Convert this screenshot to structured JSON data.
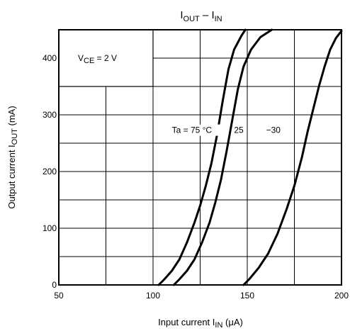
{
  "chart_data": {
    "type": "line",
    "title": {
      "main": "I",
      "s1": "OUT",
      "mid": " – I",
      "s2": "IN"
    },
    "xlabel": {
      "pre": "Input current   I",
      "sub": "IN",
      "post": "   (μA)"
    },
    "ylabel": {
      "pre": "Output current   I",
      "sub": "OUT",
      "post": "   (mA)"
    },
    "xlim": [
      50,
      200
    ],
    "ylim": [
      0,
      450
    ],
    "x_ticks": [
      50,
      100,
      150,
      200
    ],
    "y_ticks": [
      0,
      100,
      200,
      300,
      400
    ],
    "x_tick_labels": [
      "50",
      "100",
      "150",
      "200"
    ],
    "y_tick_labels": [
      "0",
      "100",
      "200",
      "300",
      "400"
    ],
    "x_minor_grid": [
      75,
      125,
      175
    ],
    "y_minor_grid": [
      50,
      150,
      250,
      350
    ],
    "grid": true,
    "condition": {
      "pre": "V",
      "sub": "CE",
      "post": " = 2 V"
    },
    "condition_box": {
      "x": [
        50,
        100
      ],
      "y": [
        350,
        450
      ]
    },
    "series": [
      {
        "name": "Ta = 75 °C",
        "points": [
          [
            103,
            0
          ],
          [
            106,
            10
          ],
          [
            110,
            25
          ],
          [
            114,
            45
          ],
          [
            118,
            75
          ],
          [
            122,
            110
          ],
          [
            125,
            140
          ],
          [
            128,
            175
          ],
          [
            131,
            215
          ],
          [
            134,
            265
          ],
          [
            137,
            325
          ],
          [
            140,
            380
          ],
          [
            143,
            415
          ],
          [
            147,
            440
          ],
          [
            149,
            450
          ]
        ]
      },
      {
        "name": "25",
        "points": [
          [
            111,
            0
          ],
          [
            114,
            10
          ],
          [
            118,
            25
          ],
          [
            122,
            45
          ],
          [
            126,
            75
          ],
          [
            130,
            110
          ],
          [
            133,
            145
          ],
          [
            136,
            185
          ],
          [
            139,
            235
          ],
          [
            142,
            290
          ],
          [
            145,
            345
          ],
          [
            148,
            385
          ],
          [
            152,
            415
          ],
          [
            157,
            437
          ],
          [
            163,
            450
          ]
        ]
      },
      {
        "name": "−30",
        "points": [
          [
            148,
            0
          ],
          [
            151,
            10
          ],
          [
            156,
            30
          ],
          [
            161,
            55
          ],
          [
            166,
            90
          ],
          [
            171,
            135
          ],
          [
            175,
            175
          ],
          [
            179,
            225
          ],
          [
            182,
            270
          ],
          [
            185,
            310
          ],
          [
            188,
            350
          ],
          [
            191,
            385
          ],
          [
            194,
            415
          ],
          [
            197,
            435
          ],
          [
            200,
            448
          ]
        ]
      }
    ],
    "curve_labels": [
      {
        "text": "Ta = 75 °C",
        "x": 110,
        "y": 268
      },
      {
        "text": "25",
        "x": 143,
        "y": 268
      },
      {
        "text": "−30",
        "x": 160,
        "y": 268
      }
    ]
  }
}
